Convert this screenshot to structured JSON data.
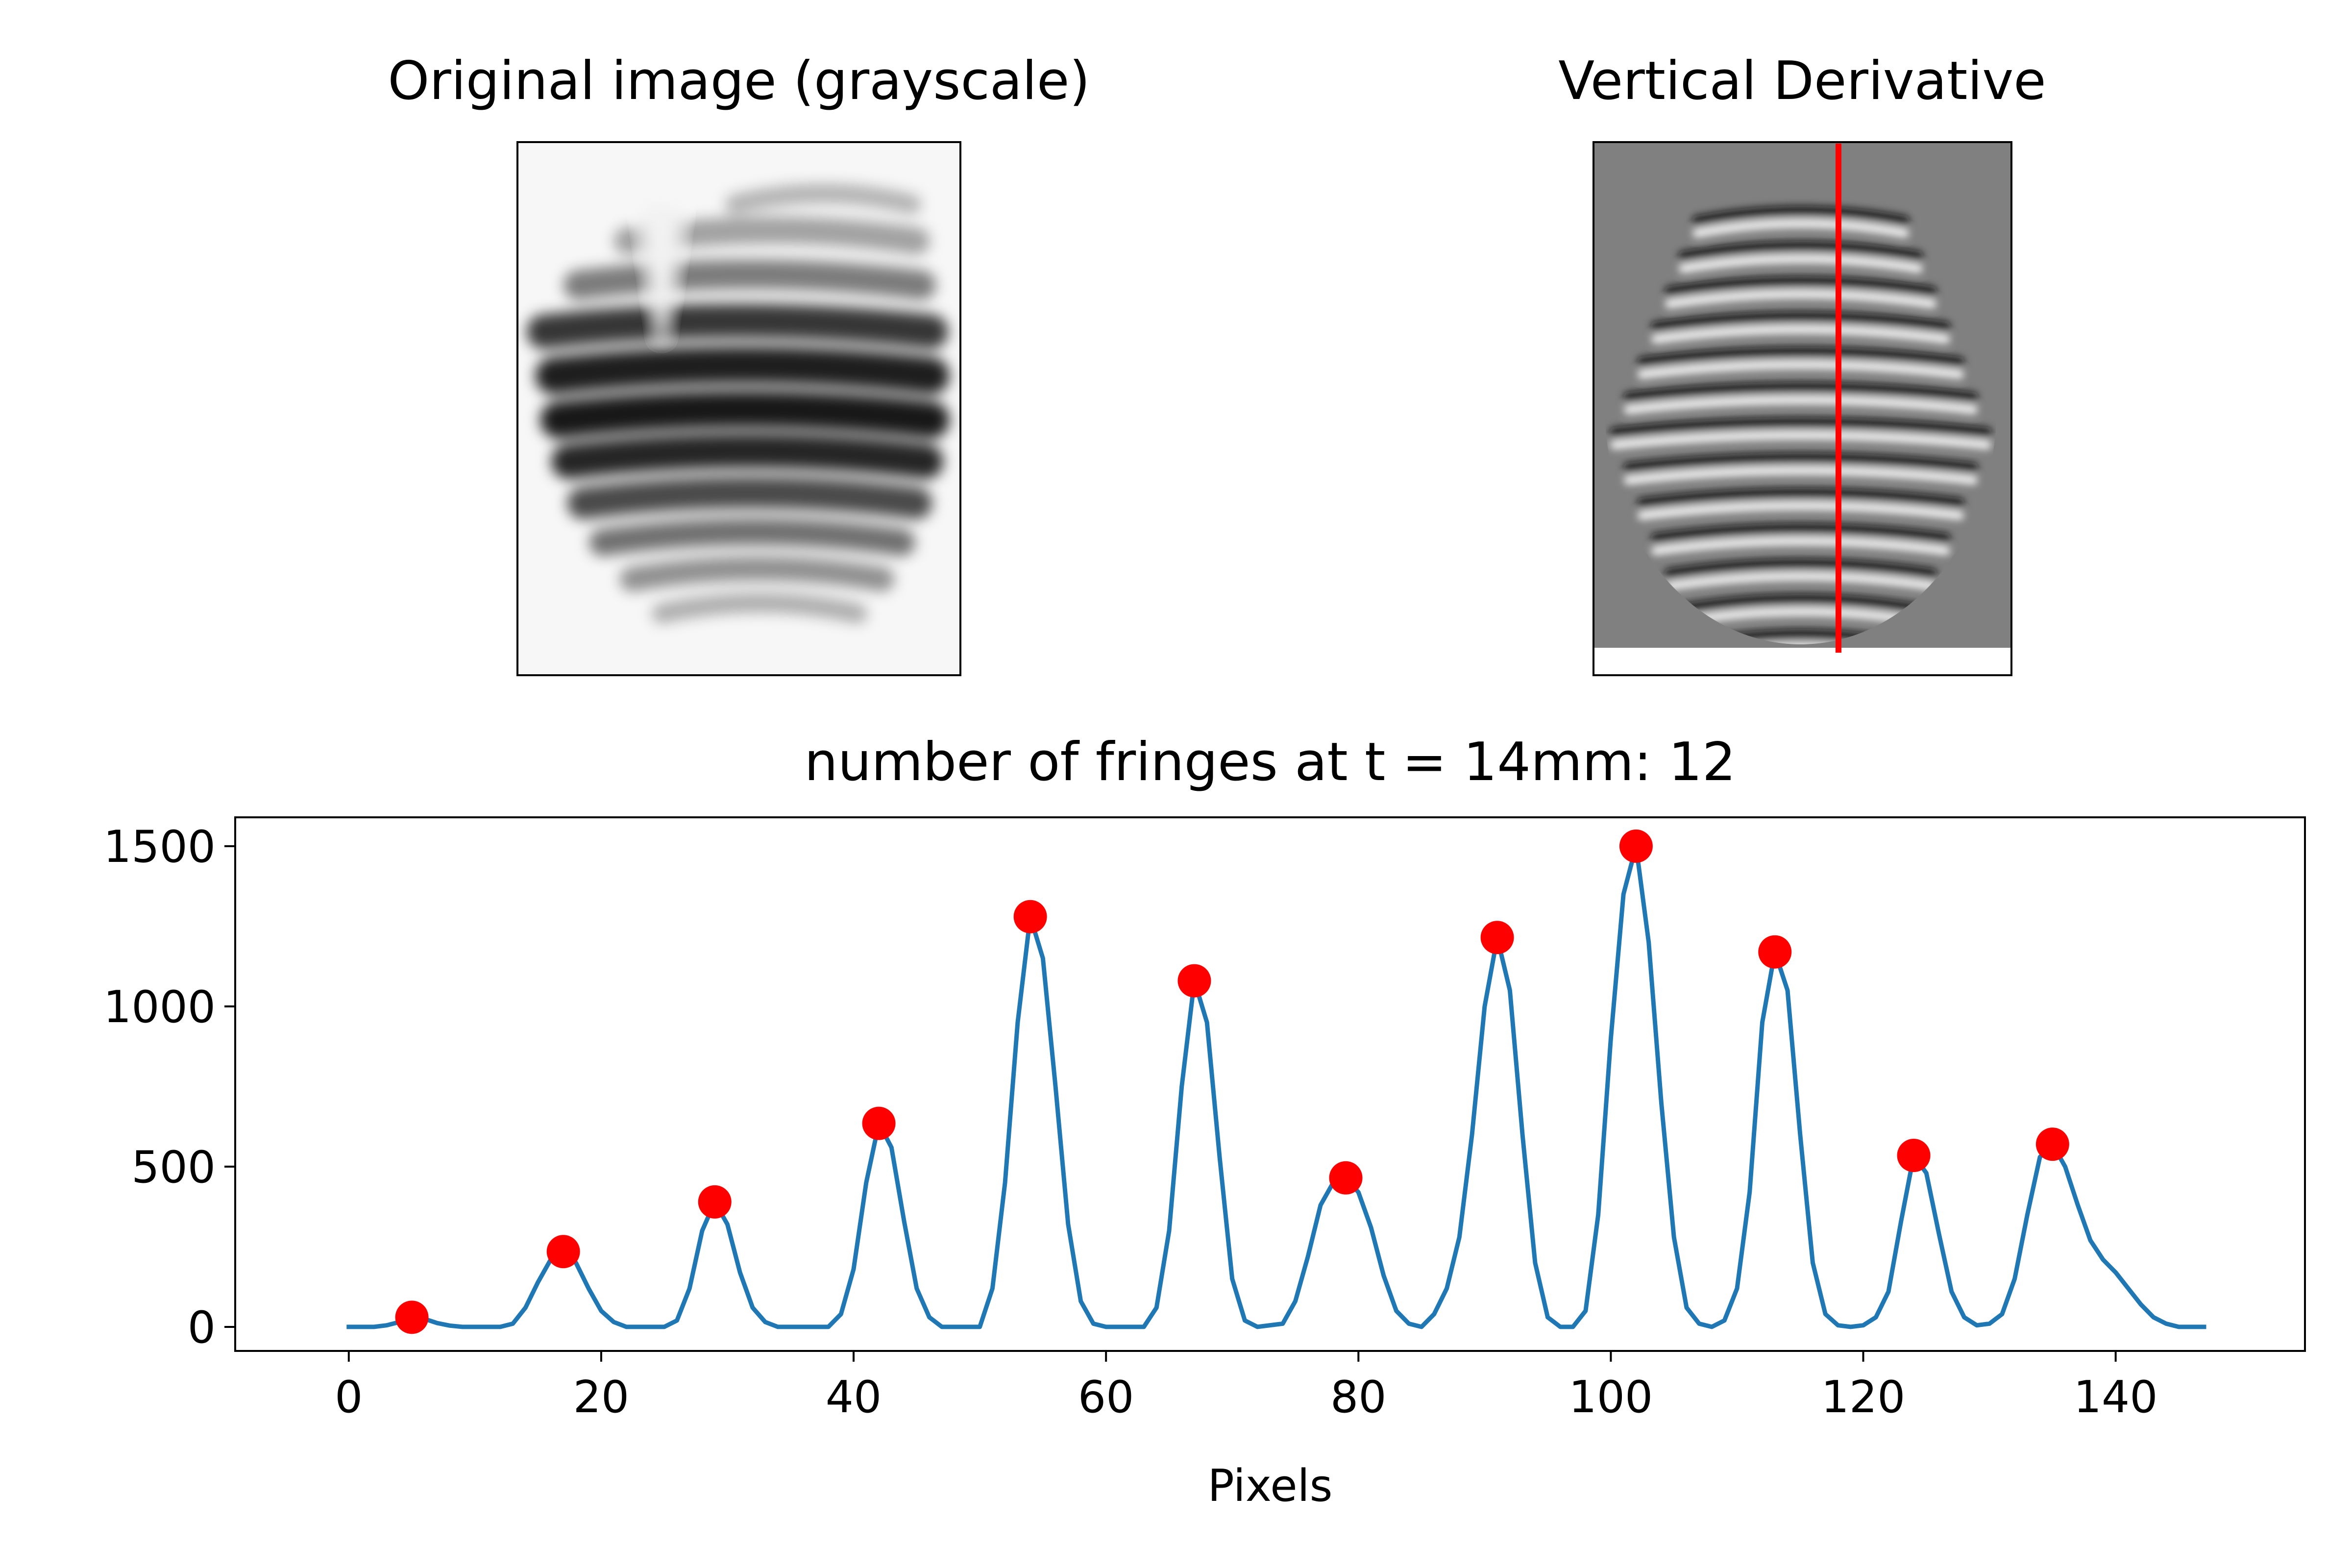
{
  "colors": {
    "line": "#1f77b4",
    "peak": "#ff0000",
    "cursor": "#ff0000",
    "deriv_bg": "#808080"
  },
  "images": {
    "original_title": "Original image (grayscale)",
    "derivative_title": "Vertical Derivative"
  },
  "chart_data": {
    "type": "line",
    "title": "number of fringes at t = 14mm: 12",
    "xlabel": "Pixels",
    "ylabel": "",
    "xlim": [
      -9,
      155
    ],
    "ylim": [
      -75,
      1590
    ],
    "xticks": [
      0,
      20,
      40,
      60,
      80,
      100,
      120,
      140
    ],
    "yticks": [
      0,
      500,
      1000,
      1500
    ],
    "grid": false,
    "series": [
      {
        "kind": "line",
        "points": [
          [
            0,
            0
          ],
          [
            2,
            0
          ],
          [
            3,
            5
          ],
          [
            4,
            15
          ],
          [
            5,
            30
          ],
          [
            6,
            25
          ],
          [
            7,
            12
          ],
          [
            8,
            4
          ],
          [
            9,
            0
          ],
          [
            12,
            0
          ],
          [
            13,
            10
          ],
          [
            14,
            60
          ],
          [
            15,
            140
          ],
          [
            16,
            210
          ],
          [
            17,
            235
          ],
          [
            18,
            200
          ],
          [
            19,
            120
          ],
          [
            20,
            50
          ],
          [
            21,
            15
          ],
          [
            22,
            0
          ],
          [
            25,
            0
          ],
          [
            26,
            20
          ],
          [
            27,
            120
          ],
          [
            28,
            300
          ],
          [
            29,
            390
          ],
          [
            30,
            320
          ],
          [
            31,
            170
          ],
          [
            32,
            60
          ],
          [
            33,
            15
          ],
          [
            34,
            0
          ],
          [
            38,
            0
          ],
          [
            39,
            40
          ],
          [
            40,
            180
          ],
          [
            41,
            450
          ],
          [
            42,
            635
          ],
          [
            43,
            560
          ],
          [
            44,
            330
          ],
          [
            45,
            120
          ],
          [
            46,
            30
          ],
          [
            47,
            0
          ],
          [
            50,
            0
          ],
          [
            51,
            120
          ],
          [
            52,
            450
          ],
          [
            53,
            950
          ],
          [
            54,
            1280
          ],
          [
            55,
            1150
          ],
          [
            56,
            750
          ],
          [
            57,
            320
          ],
          [
            58,
            80
          ],
          [
            59,
            10
          ],
          [
            60,
            0
          ],
          [
            63,
            0
          ],
          [
            64,
            60
          ],
          [
            65,
            300
          ],
          [
            66,
            750
          ],
          [
            67,
            1080
          ],
          [
            68,
            950
          ],
          [
            69,
            530
          ],
          [
            70,
            150
          ],
          [
            71,
            20
          ],
          [
            72,
            0
          ],
          [
            74,
            10
          ],
          [
            75,
            80
          ],
          [
            76,
            220
          ],
          [
            77,
            380
          ],
          [
            78,
            450
          ],
          [
            79,
            465
          ],
          [
            80,
            420
          ],
          [
            81,
            310
          ],
          [
            82,
            160
          ],
          [
            83,
            50
          ],
          [
            84,
            10
          ],
          [
            85,
            0
          ],
          [
            86,
            40
          ],
          [
            87,
            120
          ],
          [
            88,
            280
          ],
          [
            89,
            600
          ],
          [
            90,
            1000
          ],
          [
            91,
            1215
          ],
          [
            92,
            1050
          ],
          [
            93,
            600
          ],
          [
            94,
            200
          ],
          [
            95,
            30
          ],
          [
            96,
            0
          ],
          [
            97,
            0
          ],
          [
            98,
            50
          ],
          [
            99,
            350
          ],
          [
            100,
            900
          ],
          [
            101,
            1350
          ],
          [
            102,
            1500
          ],
          [
            103,
            1200
          ],
          [
            104,
            700
          ],
          [
            105,
            280
          ],
          [
            106,
            60
          ],
          [
            107,
            10
          ],
          [
            108,
            0
          ],
          [
            109,
            20
          ],
          [
            110,
            120
          ],
          [
            111,
            420
          ],
          [
            112,
            950
          ],
          [
            113,
            1170
          ],
          [
            114,
            1050
          ],
          [
            115,
            600
          ],
          [
            116,
            200
          ],
          [
            117,
            40
          ],
          [
            118,
            5
          ],
          [
            119,
            0
          ],
          [
            120,
            5
          ],
          [
            121,
            30
          ],
          [
            122,
            110
          ],
          [
            123,
            330
          ],
          [
            124,
            535
          ],
          [
            125,
            480
          ],
          [
            126,
            290
          ],
          [
            127,
            110
          ],
          [
            128,
            30
          ],
          [
            129,
            5
          ],
          [
            130,
            10
          ],
          [
            131,
            40
          ],
          [
            132,
            150
          ],
          [
            133,
            350
          ],
          [
            134,
            530
          ],
          [
            135,
            570
          ],
          [
            136,
            500
          ],
          [
            137,
            380
          ],
          [
            138,
            270
          ],
          [
            139,
            210
          ],
          [
            140,
            170
          ],
          [
            141,
            120
          ],
          [
            142,
            70
          ],
          [
            143,
            30
          ],
          [
            144,
            10
          ],
          [
            145,
            0
          ],
          [
            147,
            0
          ]
        ]
      },
      {
        "kind": "peaks",
        "points": [
          [
            5,
            30
          ],
          [
            17,
            235
          ],
          [
            29,
            390
          ],
          [
            42,
            635
          ],
          [
            54,
            1280
          ],
          [
            67,
            1080
          ],
          [
            79,
            465
          ],
          [
            91,
            1215
          ],
          [
            102,
            1500
          ],
          [
            113,
            1170
          ],
          [
            124,
            535
          ],
          [
            135,
            570
          ]
        ]
      }
    ]
  }
}
